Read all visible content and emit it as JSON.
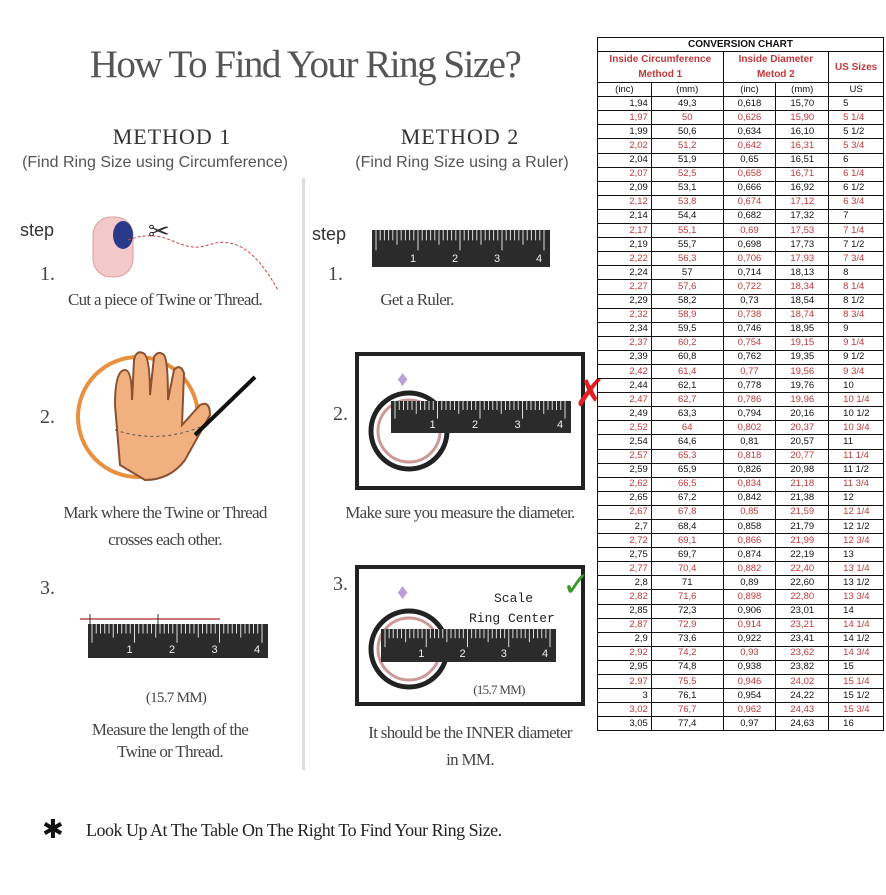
{
  "title": "How To Find Your Ring Size?",
  "method1": {
    "heading": "METHOD 1",
    "subtitle": "(Find Ring Size using Circumference)",
    "step_label": "step",
    "steps": [
      {
        "num": "1.",
        "caption": [
          "Cut a piece of  Twine or Thread."
        ]
      },
      {
        "num": "2.",
        "caption": [
          "Mark where the Twine or Thread",
          "crosses each other."
        ]
      },
      {
        "num": "3.",
        "measure": "(15.7 MM)",
        "caption": [
          "Measure the length of the",
          "Twine or Thread."
        ]
      }
    ]
  },
  "method2": {
    "heading": "METHOD 2",
    "subtitle": "(Find Ring Size using a Ruler)",
    "step_label": "step",
    "steps": [
      {
        "num": "1.",
        "caption": [
          "Get a Ruler."
        ]
      },
      {
        "num": "2.",
        "caption": [
          "Make sure you measure the diameter."
        ]
      },
      {
        "num": "3.",
        "scale_label": "Scale",
        "center_label": "Ring Center",
        "measure": "(15.7 MM)",
        "caption": [
          "It should be the INNER diameter",
          "in MM."
        ]
      }
    ]
  },
  "ruler_labels": [
    "1",
    "2",
    "3",
    "4"
  ],
  "icons": {
    "wrong": "x-mark-icon",
    "correct": "check-mark-icon",
    "diamond": "diamond-icon"
  },
  "colors": {
    "accent_red": "#c0393b",
    "check_green": "#3a9a2a",
    "wrong_red": "#e02020"
  },
  "footer": {
    "bullet": "✱",
    "text": "Look Up At The Table On The Right To Find Your Ring Size."
  },
  "table": {
    "title": "CONVERSION CHART",
    "group_headers": [
      "Inside Circumference Method 1",
      "Inside Diameter Metod 2",
      "US Sizes"
    ],
    "units": [
      "(inc)",
      "(mm)",
      "(inc)",
      "(mm)",
      "US"
    ],
    "rows": [
      [
        "1,94",
        "49,3",
        "0,618",
        "15,70",
        "5"
      ],
      [
        "1,97",
        "50",
        "0,626",
        "15,90",
        "5 1/4"
      ],
      [
        "1,99",
        "50,6",
        "0,634",
        "16,10",
        "5 1/2"
      ],
      [
        "2,02",
        "51,2",
        "0,642",
        "16,31",
        "5 3/4"
      ],
      [
        "2,04",
        "51,9",
        "0,65",
        "16,51",
        "6"
      ],
      [
        "2,07",
        "52,5",
        "0,658",
        "16,71",
        "6 1/4"
      ],
      [
        "2,09",
        "53,1",
        "0,666",
        "16,92",
        "6 1/2"
      ],
      [
        "2,12",
        "53,8",
        "0,674",
        "17,12",
        "6 3/4"
      ],
      [
        "2,14",
        "54,4",
        "0,682",
        "17,32",
        "7"
      ],
      [
        "2,17",
        "55,1",
        "0,69",
        "17,53",
        "7 1/4"
      ],
      [
        "2,19",
        "55,7",
        "0,698",
        "17,73",
        "7 1/2"
      ],
      [
        "2,22",
        "56,3",
        "0,706",
        "17,93",
        "7 3/4"
      ],
      [
        "2,24",
        "57",
        "0,714",
        "18,13",
        "8"
      ],
      [
        "2,27",
        "57,6",
        "0,722",
        "18,34",
        "8 1/4"
      ],
      [
        "2,29",
        "58,2",
        "0,73",
        "18,54",
        "8 1/2"
      ],
      [
        "2,32",
        "58,9",
        "0,738",
        "18,74",
        "8 3/4"
      ],
      [
        "2,34",
        "59,5",
        "0,746",
        "18,95",
        "9"
      ],
      [
        "2,37",
        "60,2",
        "0,754",
        "19,15",
        "9 1/4"
      ],
      [
        "2,39",
        "60,8",
        "0,762",
        "19,35",
        "9 1/2"
      ],
      [
        "2,42",
        "61,4",
        "0,77",
        "19,56",
        "9 3/4"
      ],
      [
        "2,44",
        "62,1",
        "0,778",
        "19,76",
        "10"
      ],
      [
        "2,47",
        "62,7",
        "0,786",
        "19,96",
        "10 1/4"
      ],
      [
        "2,49",
        "63,3",
        "0,794",
        "20,16",
        "10 1/2"
      ],
      [
        "2,52",
        "64",
        "0,802",
        "20,37",
        "10 3/4"
      ],
      [
        "2,54",
        "64,6",
        "0,81",
        "20,57",
        "11"
      ],
      [
        "2,57",
        "65,3",
        "0,818",
        "20,77",
        "11 1/4"
      ],
      [
        "2,59",
        "65,9",
        "0,826",
        "20,98",
        "11 1/2"
      ],
      [
        "2,62",
        "66,5",
        "0,834",
        "21,18",
        "11 3/4"
      ],
      [
        "2,65",
        "67,2",
        "0,842",
        "21,38",
        "12"
      ],
      [
        "2,67",
        "67,8",
        "0,85",
        "21,59",
        "12 1/4"
      ],
      [
        "2,7",
        "68,4",
        "0,858",
        "21,79",
        "12 1/2"
      ],
      [
        "2,72",
        "69,1",
        "0,866",
        "21,99",
        "12 3/4"
      ],
      [
        "2,75",
        "69,7",
        "0,874",
        "22,19",
        "13"
      ],
      [
        "2,77",
        "70,4",
        "0,882",
        "22,40",
        "13 1/4"
      ],
      [
        "2,8",
        "71",
        "0,89",
        "22,60",
        "13 1/2"
      ],
      [
        "2,82",
        "71,6",
        "0,898",
        "22,80",
        "13 3/4"
      ],
      [
        "2,85",
        "72,3",
        "0,906",
        "23,01",
        "14"
      ],
      [
        "2,87",
        "72,9",
        "0,914",
        "23,21",
        "14 1/4"
      ],
      [
        "2,9",
        "73,6",
        "0,922",
        "23,41",
        "14 1/2"
      ],
      [
        "2,92",
        "74,2",
        "0,93",
        "23,62",
        "14 3/4"
      ],
      [
        "2,95",
        "74,8",
        "0,938",
        "23,82",
        "15"
      ],
      [
        "2,97",
        "75,5",
        "0,946",
        "24,02",
        "15 1/4"
      ],
      [
        "3",
        "76,1",
        "0,954",
        "24,22",
        "15 1/2"
      ],
      [
        "3,02",
        "76,7",
        "0,962",
        "24,43",
        "15 3/4"
      ],
      [
        "3,05",
        "77,4",
        "0,97",
        "24,63",
        "16"
      ]
    ]
  }
}
